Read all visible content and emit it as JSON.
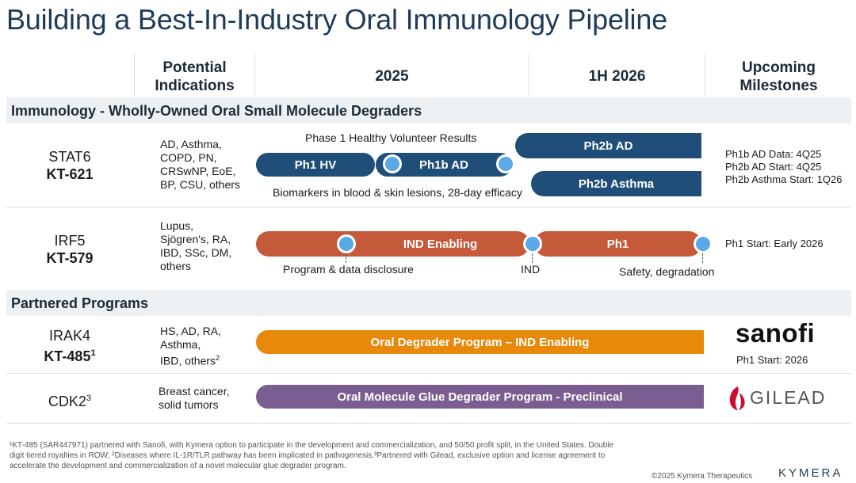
{
  "title": "Building a Best-In-Industry Oral Immunology Pipeline",
  "columns": {
    "indications": "Potential\nIndications",
    "year2025": "2025",
    "h1_2026": "1H 2026",
    "milestones": "Upcoming\nMilestones"
  },
  "sections": {
    "immunology": "Immunology - Wholly-Owned Oral Small Molecule Degraders",
    "partnered": "Partnered Programs"
  },
  "rows": {
    "stat6": {
      "name": "STAT6",
      "code": "KT-621",
      "indications": "AD, Asthma,\nCOPD, PN,\nCRSwNP, EoE,\nBP, CSU, others",
      "bars": {
        "ph1hv": "Ph1 HV",
        "ph1bad": "Ph1b AD",
        "ph2bad": "Ph2b AD",
        "ph2basthma": "Ph2b Asthma"
      },
      "note_top": "Phase 1 Healthy Volunteer Results",
      "note_bottom": "Biomarkers in blood & skin lesions, 28-day efficacy",
      "milestones": "Ph1b AD Data: 4Q25\nPh2b AD Start: 4Q25\nPh2b Asthma Start: 1Q26"
    },
    "irf5": {
      "name": "IRF5",
      "code": "KT-579",
      "indications": "Lupus,\nSjögren's, RA,\nIBD, SSc, DM,\nothers",
      "bars": {
        "ind": "IND Enabling",
        "ph1": "Ph1"
      },
      "note_program": "Program & data disclosure",
      "note_ind": "IND",
      "note_safety": "Safety, degradation",
      "milestones": "Ph1 Start: Early 2026"
    },
    "irak4": {
      "name": "IRAK4",
      "code": "KT-485",
      "code_sup": "1",
      "indications": "HS, AD, RA,\nAsthma,\nIBD, others",
      "ind_sup": "2",
      "bar": "Oral Degrader Program – IND Enabling",
      "partner": "sanofi",
      "milestones": "Ph1 Start: 2026"
    },
    "cdk2": {
      "name": "CDK2",
      "name_sup": "3",
      "indications": "Breast cancer,\nsolid tumors",
      "bar": "Oral Molecule Glue Degrader Program - Preclinical",
      "partner": "GILEAD"
    }
  },
  "footnote": "¹KT-485 (SAR447971) partnered with Sanofi, with Kymera option to participate in the development and commercialization, and 50/50 profit split, in the United States. Double digit tiered royalties in ROW; ²Diseases where IL-1R/TLR pathway has been implicated in pathogenesis.³Partnered with Gilead, exclusive option and license agreement to accelerate the development and commercialization of a novel molecular glue degrader program.",
  "copyright": "©2025 Kymera Therapeutics",
  "company_logo": "KYMERA",
  "colors": {
    "navy": "#1f4e79",
    "rust": "#c55a3a",
    "orange": "#e8890c",
    "purple": "#7b5e91",
    "milestone_dot": "#5aa9e6",
    "title": "#1e3c5a"
  }
}
